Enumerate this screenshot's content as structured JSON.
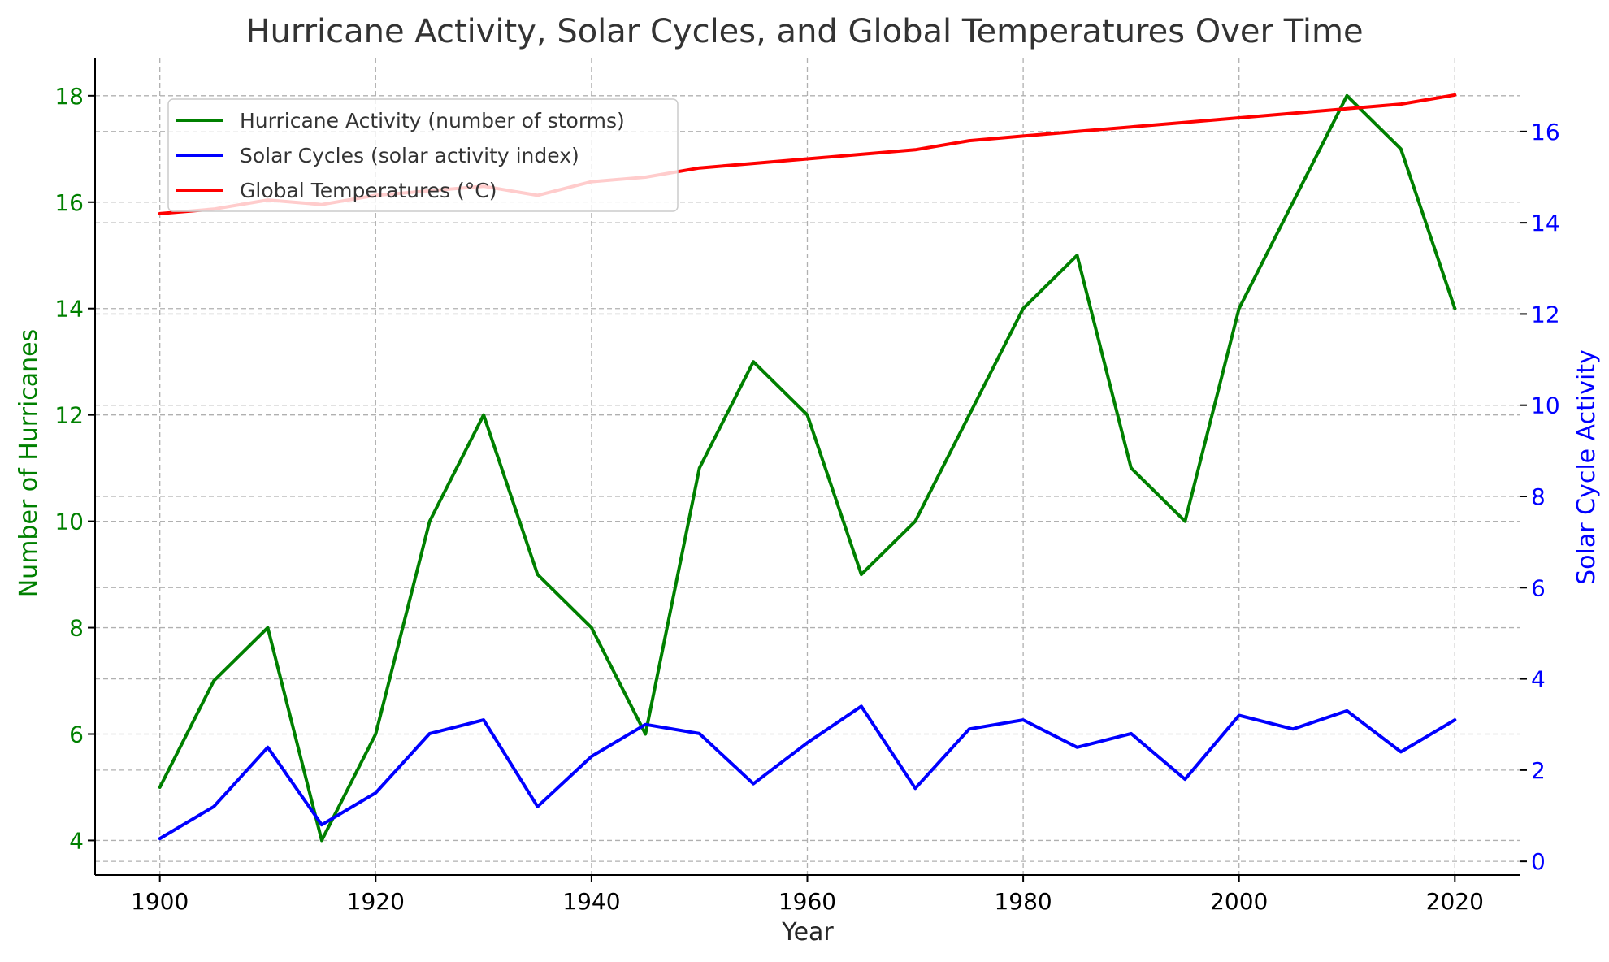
{
  "chart_data": {
    "type": "line",
    "title": "Hurricane Activity, Solar Cycles, and Global Temperatures Over Time",
    "xlabel": "Year",
    "ylabel_left": "Number of Hurricanes",
    "ylabel_right": "Solar Cycle Activity",
    "x": [
      1900,
      1905,
      1910,
      1915,
      1920,
      1925,
      1930,
      1935,
      1940,
      1945,
      1950,
      1955,
      1960,
      1965,
      1970,
      1975,
      1980,
      1985,
      1990,
      1995,
      2000,
      2005,
      2010,
      2015,
      2020
    ],
    "xlim": [
      1894,
      2026
    ],
    "xticks": [
      "1900",
      "1920",
      "1940",
      "1960",
      "1980",
      "2000",
      "2020"
    ],
    "ylim_left": [
      3.35,
      18.7
    ],
    "yticks_left": [
      "4",
      "6",
      "8",
      "10",
      "12",
      "14",
      "16",
      "18"
    ],
    "ylim_right": [
      -0.3,
      17.6
    ],
    "yticks_right": [
      "0",
      "2",
      "4",
      "6",
      "8",
      "10",
      "12",
      "14",
      "16"
    ],
    "grid": true,
    "legend_position": "upper-left",
    "series": [
      {
        "name": "Hurricane Activity (number of storms)",
        "axis": "left",
        "color": "#008000",
        "values": [
          5,
          7,
          8,
          4,
          6,
          10,
          12,
          9,
          8,
          6,
          11,
          13,
          12,
          9,
          10,
          12,
          14,
          15,
          11,
          10,
          14,
          16,
          18,
          17,
          14
        ]
      },
      {
        "name": "Solar Cycles (solar activity index)",
        "axis": "right",
        "color": "#0000ff",
        "values": [
          0.5,
          1.2,
          2.5,
          0.8,
          1.5,
          2.8,
          3.1,
          1.2,
          2.3,
          3.0,
          2.8,
          1.7,
          2.6,
          3.4,
          1.6,
          2.9,
          3.1,
          2.5,
          2.8,
          1.8,
          3.2,
          2.9,
          3.3,
          2.4,
          3.1
        ]
      },
      {
        "name": "Global Temperatures (°C)",
        "axis": "right",
        "color": "#ff0000",
        "values": [
          14.2,
          14.3,
          14.5,
          14.4,
          14.6,
          14.7,
          14.8,
          14.6,
          14.9,
          15.0,
          15.2,
          15.3,
          15.4,
          15.5,
          15.6,
          15.8,
          15.9,
          16.0,
          16.1,
          16.2,
          16.3,
          16.4,
          16.5,
          16.6,
          16.8
        ]
      }
    ]
  }
}
